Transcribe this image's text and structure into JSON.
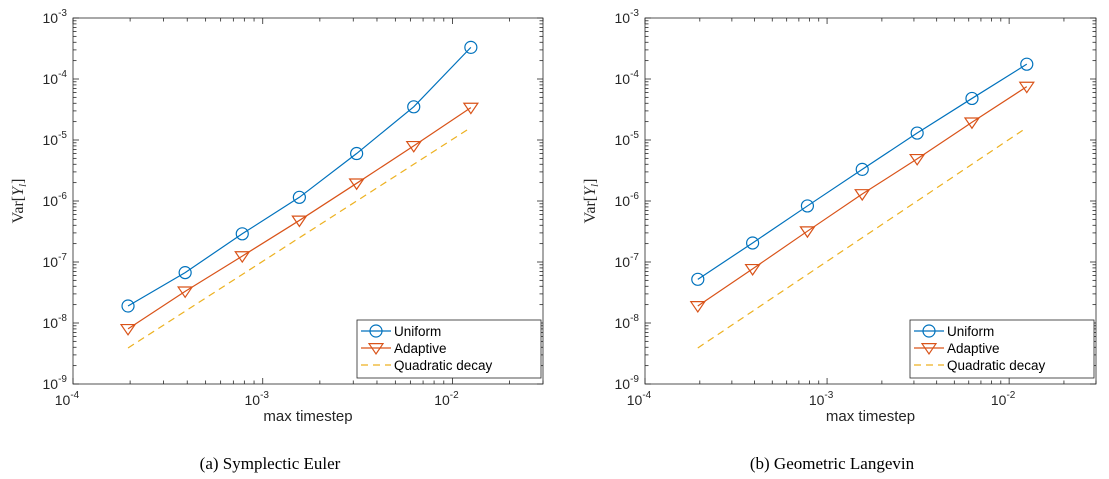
{
  "chart_data": [
    {
      "type": "line",
      "caption": "(a) Symplectic Euler",
      "xlabel": "max timestep",
      "ylabel": "Var[Y_l]",
      "xscale": "log",
      "yscale": "log",
      "xlim": [
        0.0001,
        0.03
      ],
      "ylim": [
        1e-09,
        0.001
      ],
      "xticks": [
        {
          "mant": "10",
          "exp": "-4"
        },
        {
          "mant": "10",
          "exp": "-3"
        },
        {
          "mant": "10",
          "exp": "-2"
        }
      ],
      "yticks": [
        {
          "mant": "10",
          "exp": "-9"
        },
        {
          "mant": "10",
          "exp": "-8"
        },
        {
          "mant": "10",
          "exp": "-7"
        },
        {
          "mant": "10",
          "exp": "-6"
        },
        {
          "mant": "10",
          "exp": "-5"
        },
        {
          "mant": "10",
          "exp": "-4"
        },
        {
          "mant": "10",
          "exp": "-3"
        }
      ],
      "x": [
        0.000195,
        0.00039,
        0.00078,
        0.00156,
        0.003125,
        0.00625,
        0.0125
      ],
      "series": [
        {
          "name": "Uniform",
          "marker": "circle",
          "color": "#0072BD",
          "style": "solid",
          "values": [
            1.9e-08,
            6.7e-08,
            2.9e-07,
            1.15e-06,
            6e-06,
            3.5e-05,
            0.00033
          ]
        },
        {
          "name": "Adaptive",
          "marker": "triangle-down",
          "color": "#D95319",
          "style": "solid",
          "values": [
            8e-09,
            3.3e-08,
            1.25e-07,
            4.8e-07,
            1.95e-06,
            8e-06,
            3.4e-05
          ]
        },
        {
          "name": "Quadratic decay",
          "marker": "none",
          "color": "#EDB120",
          "style": "dashed",
          "values": [
            3.9e-09,
            1.56e-08,
            6.24e-08,
            2.5e-07,
            1e-06,
            4e-06,
            1.6e-05
          ]
        }
      ],
      "legend_position": "bottom-right",
      "grid": false
    },
    {
      "type": "line",
      "caption": "(b) Geometric Langevin",
      "xlabel": "max timestep",
      "ylabel": "Var[Y_l]",
      "xscale": "log",
      "yscale": "log",
      "xlim": [
        0.0001,
        0.03
      ],
      "ylim": [
        1e-09,
        0.001
      ],
      "xticks": [
        {
          "mant": "10",
          "exp": "-4"
        },
        {
          "mant": "10",
          "exp": "-3"
        },
        {
          "mant": "10",
          "exp": "-2"
        }
      ],
      "yticks": [
        {
          "mant": "10",
          "exp": "-9"
        },
        {
          "mant": "10",
          "exp": "-8"
        },
        {
          "mant": "10",
          "exp": "-7"
        },
        {
          "mant": "10",
          "exp": "-6"
        },
        {
          "mant": "10",
          "exp": "-5"
        },
        {
          "mant": "10",
          "exp": "-4"
        },
        {
          "mant": "10",
          "exp": "-3"
        }
      ],
      "x": [
        0.000195,
        0.00039,
        0.00078,
        0.00156,
        0.003125,
        0.00625,
        0.0125
      ],
      "series": [
        {
          "name": "Uniform",
          "marker": "circle",
          "color": "#0072BD",
          "style": "solid",
          "values": [
            5.2e-08,
            2.05e-07,
            8.3e-07,
            3.3e-06,
            1.3e-05,
            4.8e-05,
            0.000175
          ]
        },
        {
          "name": "Adaptive",
          "marker": "triangle-down",
          "color": "#D95319",
          "style": "solid",
          "values": [
            1.9e-08,
            7.7e-08,
            3.2e-07,
            1.3e-06,
            4.9e-06,
            1.95e-05,
            7.5e-05
          ]
        },
        {
          "name": "Quadratic decay",
          "marker": "none",
          "color": "#EDB120",
          "style": "dashed",
          "values": [
            3.9e-09,
            1.56e-08,
            6.24e-08,
            2.5e-07,
            1e-06,
            4e-06,
            1.6e-05
          ]
        }
      ],
      "legend_position": "bottom-right",
      "grid": false
    }
  ]
}
